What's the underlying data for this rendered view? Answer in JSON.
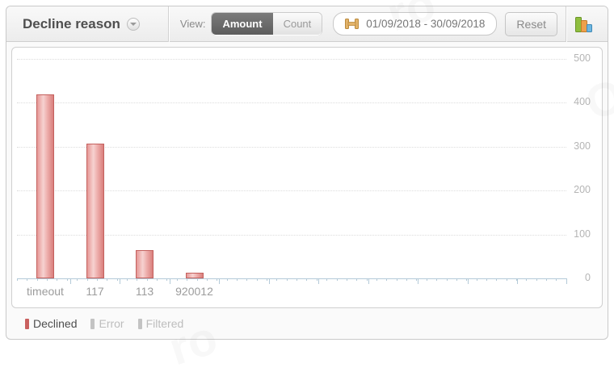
{
  "header": {
    "title": "Decline reason",
    "view_label": "View:",
    "view_options": [
      {
        "label": "Amount",
        "selected": true
      },
      {
        "label": "Count",
        "selected": false
      }
    ],
    "date_range": "01/09/2018 - 30/09/2018",
    "reset_label": "Reset"
  },
  "chart_data": {
    "type": "bar",
    "categories": [
      "timeout",
      "117",
      "113",
      "920012"
    ],
    "series": [
      {
        "name": "Declined",
        "color": "#cc6766",
        "values": [
          420,
          307,
          65,
          13
        ]
      }
    ],
    "title": "Decline reason",
    "xlabel": "",
    "ylabel": "",
    "ylim": [
      0,
      500
    ],
    "yticks": [
      0,
      100,
      200,
      300,
      400,
      500
    ],
    "grid": "horizontal dotted",
    "legend_position": "bottom-left"
  },
  "legend": {
    "items": [
      {
        "label": "Declined",
        "color": "#c9605f",
        "active": true
      },
      {
        "label": "Error",
        "color": "#c3c3c3",
        "active": false
      },
      {
        "label": "Filtered",
        "color": "#c3c3c3",
        "active": false
      }
    ]
  },
  "colors": {
    "bar_fill": "#e99a98",
    "bar_border": "#c4615e",
    "axis": "#b4cad8",
    "selected_toggle_bg": "#666666",
    "header_text": "#4f4f4f",
    "icon_green": "#7db32b",
    "icon_orange": "#e8903a",
    "icon_blue": "#53a7d8",
    "date_icon_gold": "#d8a358"
  },
  "watermark": {
    "glyphs": [
      "ro",
      "O",
      "ro"
    ]
  }
}
